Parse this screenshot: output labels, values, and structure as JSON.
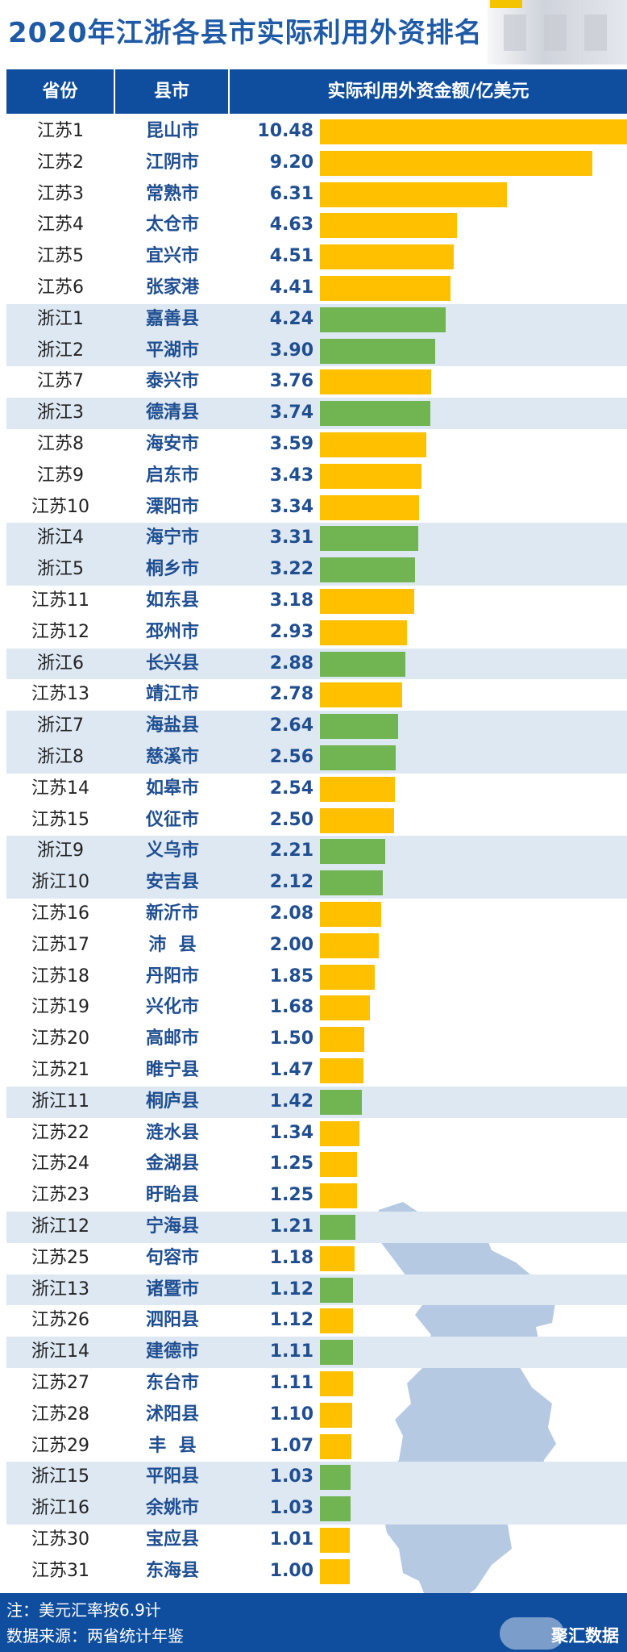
{
  "title": "2020年江浙各县市实际利用外资排名",
  "header": {
    "province": "省份",
    "city": "县市",
    "amount": "实际利用外资金额/亿美元"
  },
  "colors": {
    "jiangsu_bar": "#ffc000",
    "zhejiang_bar": "#70b552",
    "header_bg": "#0f4e9e",
    "zhejiang_row_bg": "#dde8f3",
    "text_blue": "#1f4e91"
  },
  "footer": {
    "note": "注：美元汇率按6.9计",
    "source": "数据来源：两省统计年鉴",
    "brand": "聚汇数据"
  },
  "chart_data": {
    "type": "bar",
    "orientation": "horizontal",
    "title": "2020年江浙各县市实际利用外资排名",
    "xlabel": "实际利用外资金额/亿美元",
    "rows": [
      {
        "prov": "江苏1",
        "city": "昆山市",
        "value": "10.48"
      },
      {
        "prov": "江苏2",
        "city": "江阴市",
        "value": "9.20"
      },
      {
        "prov": "江苏3",
        "city": "常熟市",
        "value": "6.31"
      },
      {
        "prov": "江苏4",
        "city": "太仓市",
        "value": "4.63"
      },
      {
        "prov": "江苏5",
        "city": "宜兴市",
        "value": "4.51"
      },
      {
        "prov": "江苏6",
        "city": "张家港",
        "value": "4.41"
      },
      {
        "prov": "浙江1",
        "city": "嘉善县",
        "value": "4.24"
      },
      {
        "prov": "浙江2",
        "city": "平湖市",
        "value": "3.90"
      },
      {
        "prov": "江苏7",
        "city": "泰兴市",
        "value": "3.76"
      },
      {
        "prov": "浙江3",
        "city": "德清县",
        "value": "3.74"
      },
      {
        "prov": "江苏8",
        "city": "海安市",
        "value": "3.59"
      },
      {
        "prov": "江苏9",
        "city": "启东市",
        "value": "3.43"
      },
      {
        "prov": "江苏10",
        "city": "溧阳市",
        "value": "3.34"
      },
      {
        "prov": "浙江4",
        "city": "海宁市",
        "value": "3.31"
      },
      {
        "prov": "浙江5",
        "city": "桐乡市",
        "value": "3.22"
      },
      {
        "prov": "江苏11",
        "city": "如东县",
        "value": "3.18"
      },
      {
        "prov": "江苏12",
        "city": "邳州市",
        "value": "2.93"
      },
      {
        "prov": "浙江6",
        "city": "长兴县",
        "value": "2.88"
      },
      {
        "prov": "江苏13",
        "city": "靖江市",
        "value": "2.78"
      },
      {
        "prov": "浙江7",
        "city": "海盐县",
        "value": "2.64"
      },
      {
        "prov": "浙江8",
        "city": "慈溪市",
        "value": "2.56"
      },
      {
        "prov": "江苏14",
        "city": "如皋市",
        "value": "2.54"
      },
      {
        "prov": "江苏15",
        "city": "仪征市",
        "value": "2.50"
      },
      {
        "prov": "浙江9",
        "city": "义乌市",
        "value": "2.21"
      },
      {
        "prov": "浙江10",
        "city": "安吉县",
        "value": "2.12"
      },
      {
        "prov": "江苏16",
        "city": "新沂市",
        "value": "2.08"
      },
      {
        "prov": "江苏17",
        "city": "沛  县",
        "value": "2.00"
      },
      {
        "prov": "江苏18",
        "city": "丹阳市",
        "value": "1.85"
      },
      {
        "prov": "江苏19",
        "city": "兴化市",
        "value": "1.68"
      },
      {
        "prov": "江苏20",
        "city": "高邮市",
        "value": "1.50"
      },
      {
        "prov": "江苏21",
        "city": "睢宁县",
        "value": "1.47"
      },
      {
        "prov": "浙江11",
        "city": "桐庐县",
        "value": "1.42"
      },
      {
        "prov": "江苏22",
        "city": "涟水县",
        "value": "1.34"
      },
      {
        "prov": "江苏24",
        "city": "金湖县",
        "value": "1.25"
      },
      {
        "prov": "江苏23",
        "city": "盱眙县",
        "value": "1.25"
      },
      {
        "prov": "浙江12",
        "city": "宁海县",
        "value": "1.21"
      },
      {
        "prov": "江苏25",
        "city": "句容市",
        "value": "1.18"
      },
      {
        "prov": "浙江13",
        "city": "诸暨市",
        "value": "1.12"
      },
      {
        "prov": "江苏26",
        "city": "泗阳县",
        "value": "1.12"
      },
      {
        "prov": "浙江14",
        "city": "建德市",
        "value": "1.11"
      },
      {
        "prov": "江苏27",
        "city": "东台市",
        "value": "1.11"
      },
      {
        "prov": "江苏28",
        "city": "沭阳县",
        "value": "1.10"
      },
      {
        "prov": "江苏29",
        "city": "丰  县",
        "value": "1.07"
      },
      {
        "prov": "浙江15",
        "city": "平阳县",
        "value": "1.03"
      },
      {
        "prov": "浙江16",
        "city": "余姚市",
        "value": "1.03"
      },
      {
        "prov": "江苏30",
        "city": "宝应县",
        "value": "1.01"
      },
      {
        "prov": "江苏31",
        "city": "东海县",
        "value": "1.00"
      }
    ]
  }
}
